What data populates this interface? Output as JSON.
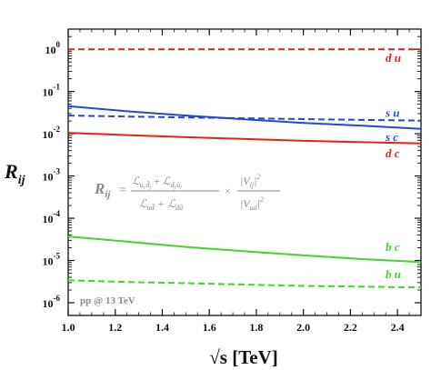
{
  "chart_data": {
    "type": "line",
    "title": "",
    "xlabel": "√s [TeV]",
    "ylabel": "R_ij",
    "x_scale": "linear",
    "y_scale": "log",
    "xlim": [
      1.0,
      2.5
    ],
    "ylim": [
      5e-07,
      3
    ],
    "grid": false,
    "x_ticks": [
      1.0,
      1.2,
      1.4,
      1.6,
      1.8,
      2.0,
      2.2,
      2.4
    ],
    "x_tick_labels": [
      "1.0",
      "1.2",
      "1.4",
      "1.6",
      "1.8",
      "2.0",
      "2.2",
      "2.4"
    ],
    "y_ticks": [
      1,
      0.1,
      0.01,
      0.001,
      0.0001,
      1e-05,
      1e-06
    ],
    "y_tick_labels": [
      {
        "base": "10",
        "exp": "0"
      },
      {
        "base": "10",
        "exp": "-1"
      },
      {
        "base": "10",
        "exp": "-2"
      },
      {
        "base": "10",
        "exp": "-3"
      },
      {
        "base": "10",
        "exp": "-4"
      },
      {
        "base": "10",
        "exp": "-5"
      },
      {
        "base": "10",
        "exp": "-6"
      }
    ],
    "series": [
      {
        "name": "d u",
        "color": "#e8201a",
        "dashed": true,
        "x": [
          1.0,
          1.25,
          1.5,
          1.75,
          2.0,
          2.25,
          2.5
        ],
        "y": [
          1.0,
          1.0,
          1.0,
          1.0,
          1.0,
          1.0,
          1.0
        ]
      },
      {
        "name": "s u",
        "color": "#2845d6",
        "dashed": true,
        "x": [
          1.0,
          1.25,
          1.5,
          1.75,
          2.0,
          2.25,
          2.5
        ],
        "y": [
          0.027,
          0.0255,
          0.0243,
          0.0232,
          0.0222,
          0.0213,
          0.0205
        ]
      },
      {
        "name": "s c",
        "color": "#2845d6",
        "dashed": false,
        "x": [
          1.0,
          1.25,
          1.5,
          1.75,
          2.0,
          2.25,
          2.5
        ],
        "y": [
          0.045,
          0.034,
          0.027,
          0.022,
          0.018,
          0.0155,
          0.013
        ]
      },
      {
        "name": "d c",
        "color": "#e8201a",
        "dashed": false,
        "x": [
          1.0,
          1.25,
          1.5,
          1.75,
          2.0,
          2.25,
          2.5
        ],
        "y": [
          0.0105,
          0.0093,
          0.0083,
          0.0075,
          0.0068,
          0.0063,
          0.0059
        ]
      },
      {
        "name": "b c",
        "color": "#3fd62c",
        "dashed": false,
        "x": [
          1.0,
          1.25,
          1.5,
          1.75,
          2.0,
          2.25,
          2.5
        ],
        "y": [
          3.7e-05,
          2.8e-05,
          2.1e-05,
          1.65e-05,
          1.32e-05,
          1.08e-05,
          9.2e-06
        ]
      },
      {
        "name": "b u",
        "color": "#3fd62c",
        "dashed": true,
        "x": [
          1.0,
          1.25,
          1.5,
          1.75,
          2.0,
          2.25,
          2.5
        ],
        "y": [
          3.4e-06,
          3.1e-06,
          2.9e-06,
          2.7e-06,
          2.5e-06,
          2.4e-06,
          2.3e-06
        ]
      }
    ],
    "annotations": {
      "note": "pp @ 13 TeV",
      "formula": {
        "lhs": "R",
        "lhs_sub": "ij",
        "num_left": "ℒ",
        "num_left_sub": "u",
        "num_left_sub2": "i",
        "num_left_sub3": "d̄",
        "num_left_sub4": "j",
        "plus": "+",
        "num_right": "ℒ",
        "num_right_sub": "d",
        "num_right_sub2": "j",
        "num_right_sub3": "ū",
        "num_right_sub4": "i",
        "den_left": "ℒ",
        "den_left_sub": "ud̄",
        "den_right": "ℒ",
        "den_right_sub": "dū",
        "times": "×",
        "vij": "|V",
        "vij_sub": "ij",
        "vij_close": "|",
        "vud": "|V",
        "vud_sub": "ud",
        "vud_close": "|",
        "sq": "2"
      }
    }
  }
}
